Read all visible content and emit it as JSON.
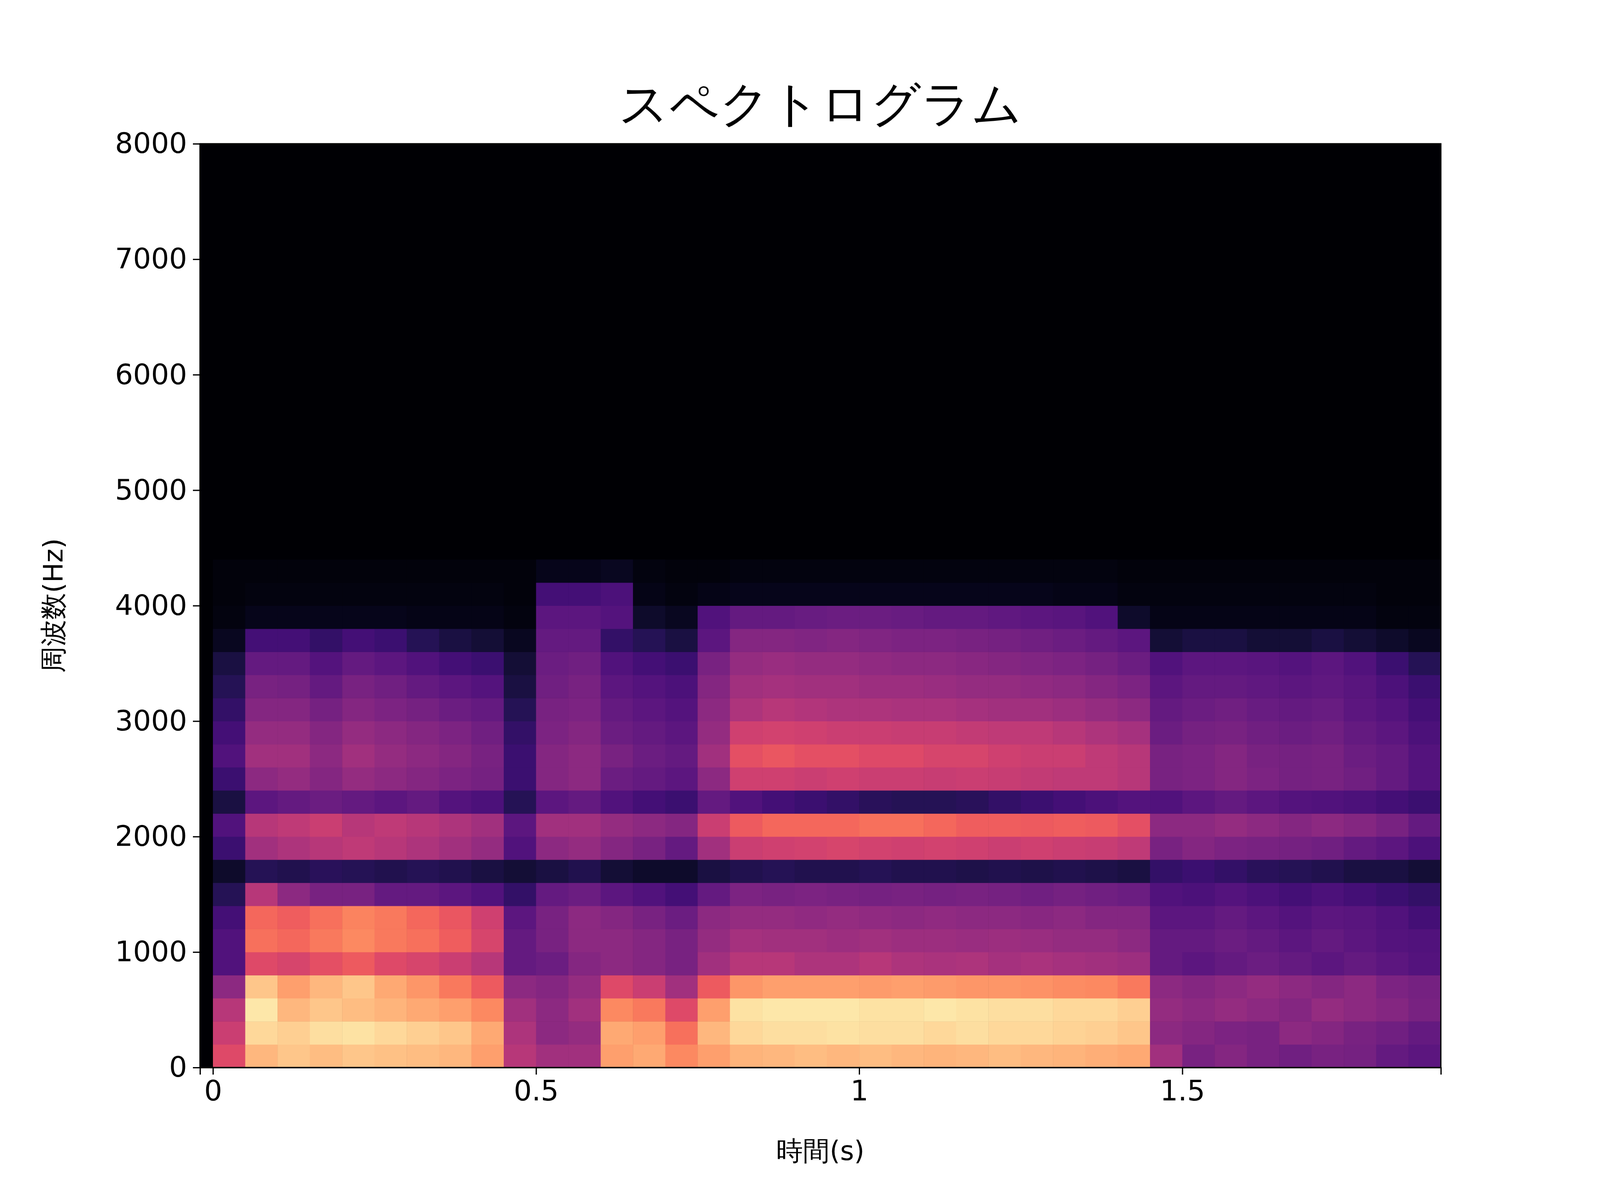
{
  "chart_data": {
    "type": "heatmap",
    "title": "スペクトログラム",
    "x_label": "時間(s)",
    "y_label": "周波数(Hz)",
    "color": "magma",
    "zlim": [
      0,
      100
    ],
    "xlim": [
      -0.02,
      1.9
    ],
    "ylim": [
      0,
      8000
    ],
    "xticks": [
      0,
      0.5,
      1,
      1.5
    ],
    "yticks": [
      0,
      1000,
      2000,
      3000,
      4000,
      5000,
      6000,
      7000,
      8000
    ],
    "x_bins": [
      0,
      0.05,
      0.1,
      0.15,
      0.2,
      0.25,
      0.3,
      0.35,
      0.4,
      0.45,
      0.5,
      0.55,
      0.6,
      0.65,
      0.7,
      0.75,
      0.8,
      0.85,
      0.9,
      0.95,
      1,
      1.05,
      1.1,
      1.15,
      1.2,
      1.25,
      1.3,
      1.35,
      1.4,
      1.45,
      1.5,
      1.55,
      1.6,
      1.65,
      1.7,
      1.75,
      1.8,
      1.85,
      1.9
    ],
    "y_bins": [
      0,
      200,
      400,
      600,
      800,
      1000,
      1200,
      1400,
      1600,
      1800,
      2000,
      2200,
      2400,
      2600,
      2800,
      3000,
      3200,
      3400,
      3600,
      3800,
      4000,
      4200,
      4400
    ],
    "z": [
      [
        60,
        85,
        88,
        86,
        88,
        87,
        86,
        85,
        80,
        50,
        45,
        45,
        80,
        82,
        75,
        80,
        84,
        85,
        86,
        85,
        86,
        85,
        84,
        85,
        86,
        85,
        84,
        83,
        82,
        45,
        35,
        38,
        35,
        33,
        35,
        34,
        30,
        28
      ],
      [
        55,
        92,
        90,
        93,
        94,
        92,
        90,
        88,
        82,
        48,
        40,
        42,
        82,
        80,
        70,
        85,
        92,
        93,
        93,
        94,
        93,
        93,
        92,
        93,
        92,
        92,
        91,
        90,
        88,
        40,
        38,
        36,
        35,
        40,
        38,
        35,
        33,
        30
      ],
      [
        50,
        95,
        85,
        88,
        86,
        84,
        82,
        80,
        75,
        45,
        40,
        45,
        75,
        72,
        60,
        80,
        94,
        95,
        95,
        95,
        94,
        94,
        95,
        94,
        93,
        93,
        92,
        92,
        90,
        42,
        40,
        42,
        40,
        38,
        42,
        40,
        38,
        35
      ],
      [
        40,
        88,
        80,
        85,
        88,
        82,
        78,
        72,
        65,
        40,
        38,
        42,
        60,
        55,
        45,
        65,
        78,
        80,
        80,
        80,
        79,
        80,
        79,
        78,
        78,
        77,
        76,
        75,
        72,
        40,
        38,
        40,
        42,
        40,
        38,
        40,
        36,
        34
      ],
      [
        25,
        60,
        58,
        62,
        65,
        60,
        58,
        55,
        50,
        30,
        32,
        38,
        40,
        38,
        35,
        45,
        50,
        50,
        48,
        48,
        50,
        48,
        47,
        48,
        46,
        47,
        46,
        45,
        44,
        30,
        28,
        30,
        32,
        30,
        28,
        30,
        28,
        26
      ],
      [
        25,
        70,
        68,
        72,
        75,
        72,
        70,
        66,
        58,
        30,
        35,
        40,
        40,
        38,
        35,
        42,
        46,
        45,
        45,
        44,
        45,
        44,
        44,
        43,
        44,
        43,
        42,
        42,
        40,
        30,
        30,
        32,
        30,
        28,
        30,
        28,
        26,
        25
      ],
      [
        22,
        68,
        66,
        70,
        74,
        72,
        68,
        64,
        56,
        28,
        35,
        40,
        38,
        35,
        32,
        40,
        42,
        42,
        41,
        42,
        41,
        40,
        41,
        40,
        40,
        39,
        40,
        38,
        38,
        28,
        28,
        30,
        28,
        26,
        28,
        27,
        25,
        22
      ],
      [
        15,
        50,
        40,
        35,
        35,
        30,
        30,
        28,
        25,
        18,
        30,
        32,
        28,
        25,
        22,
        30,
        36,
        35,
        36,
        35,
        34,
        35,
        34,
        35,
        34,
        33,
        34,
        33,
        32,
        25,
        24,
        26,
        24,
        22,
        24,
        22,
        20,
        18
      ],
      [
        8,
        15,
        14,
        16,
        15,
        14,
        15,
        14,
        12,
        10,
        12,
        14,
        10,
        8,
        8,
        12,
        14,
        15,
        14,
        14,
        15,
        14,
        14,
        13,
        14,
        13,
        14,
        13,
        12,
        18,
        20,
        18,
        16,
        15,
        14,
        12,
        12,
        10
      ],
      [
        20,
        45,
        48,
        50,
        52,
        50,
        48,
        45,
        42,
        25,
        40,
        42,
        38,
        35,
        30,
        45,
        55,
        56,
        57,
        58,
        57,
        56,
        57,
        56,
        55,
        56,
        55,
        54,
        52,
        35,
        38,
        36,
        35,
        34,
        33,
        30,
        28,
        24
      ],
      [
        25,
        50,
        52,
        55,
        50,
        52,
        50,
        48,
        45,
        28,
        45,
        45,
        42,
        40,
        38,
        55,
        65,
        68,
        68,
        68,
        70,
        70,
        68,
        66,
        66,
        65,
        66,
        65,
        62,
        40,
        40,
        42,
        40,
        38,
        40,
        38,
        35,
        30
      ],
      [
        12,
        28,
        30,
        32,
        30,
        28,
        30,
        26,
        24,
        15,
        28,
        30,
        25,
        22,
        20,
        30,
        25,
        22,
        20,
        18,
        16,
        15,
        15,
        16,
        18,
        20,
        22,
        24,
        26,
        25,
        28,
        30,
        28,
        26,
        25,
        24,
        22,
        20
      ],
      [
        20,
        40,
        42,
        38,
        42,
        40,
        38,
        36,
        34,
        20,
        38,
        40,
        32,
        30,
        28,
        40,
        56,
        56,
        55,
        56,
        55,
        55,
        54,
        55,
        54,
        53,
        52,
        52,
        50,
        35,
        36,
        38,
        36,
        34,
        35,
        33,
        30,
        26
      ],
      [
        25,
        45,
        45,
        40,
        45,
        42,
        40,
        38,
        35,
        20,
        38,
        40,
        35,
        32,
        30,
        45,
        62,
        64,
        62,
        62,
        60,
        60,
        58,
        58,
        56,
        55,
        55,
        52,
        50,
        35,
        36,
        38,
        35,
        34,
        35,
        32,
        30,
        26
      ],
      [
        22,
        42,
        42,
        38,
        42,
        40,
        38,
        36,
        33,
        18,
        36,
        38,
        32,
        30,
        28,
        42,
        56,
        57,
        56,
        55,
        55,
        54,
        54,
        53,
        52,
        52,
        50,
        48,
        46,
        32,
        34,
        35,
        33,
        32,
        33,
        30,
        28,
        24
      ],
      [
        18,
        38,
        38,
        34,
        38,
        36,
        34,
        32,
        30,
        15,
        35,
        36,
        30,
        28,
        26,
        40,
        48,
        50,
        49,
        48,
        48,
        47,
        47,
        46,
        45,
        45,
        44,
        42,
        40,
        30,
        32,
        33,
        31,
        30,
        31,
        28,
        26,
        22
      ],
      [
        15,
        35,
        34,
        30,
        35,
        33,
        30,
        28,
        26,
        12,
        33,
        35,
        28,
        26,
        24,
        38,
        45,
        46,
        45,
        45,
        44,
        44,
        43,
        42,
        42,
        41,
        40,
        38,
        36,
        28,
        30,
        30,
        29,
        28,
        29,
        27,
        24,
        20
      ],
      [
        12,
        30,
        30,
        26,
        30,
        28,
        25,
        22,
        20,
        10,
        32,
        33,
        25,
        22,
        20,
        35,
        42,
        43,
        42,
        42,
        41,
        40,
        40,
        39,
        38,
        37,
        36,
        34,
        32,
        25,
        28,
        28,
        27,
        26,
        28,
        25,
        20,
        15
      ],
      [
        6,
        22,
        22,
        18,
        22,
        20,
        15,
        12,
        10,
        6,
        30,
        30,
        18,
        15,
        12,
        28,
        38,
        38,
        37,
        38,
        37,
        36,
        36,
        35,
        34,
        33,
        32,
        30,
        28,
        10,
        12,
        12,
        10,
        10,
        12,
        10,
        8,
        6
      ],
      [
        3,
        5,
        5,
        5,
        5,
        5,
        4,
        4,
        4,
        3,
        28,
        28,
        26,
        8,
        6,
        25,
        30,
        30,
        31,
        32,
        32,
        31,
        30,
        30,
        29,
        28,
        27,
        25,
        8,
        4,
        4,
        4,
        4,
        4,
        4,
        4,
        3,
        3
      ],
      [
        2,
        3,
        3,
        3,
        3,
        3,
        3,
        3,
        3,
        2,
        22,
        22,
        24,
        4,
        3,
        4,
        5,
        5,
        5,
        5,
        5,
        5,
        5,
        5,
        5,
        5,
        4,
        4,
        3,
        3,
        3,
        3,
        3,
        3,
        3,
        3,
        2,
        2
      ],
      [
        2,
        2,
        2,
        2,
        2,
        2,
        2,
        2,
        2,
        2,
        5,
        5,
        6,
        3,
        2,
        2,
        3,
        3,
        3,
        3,
        3,
        3,
        3,
        3,
        3,
        3,
        3,
        3,
        2,
        2,
        2,
        2,
        2,
        2,
        2,
        2,
        2,
        2
      ]
    ]
  }
}
